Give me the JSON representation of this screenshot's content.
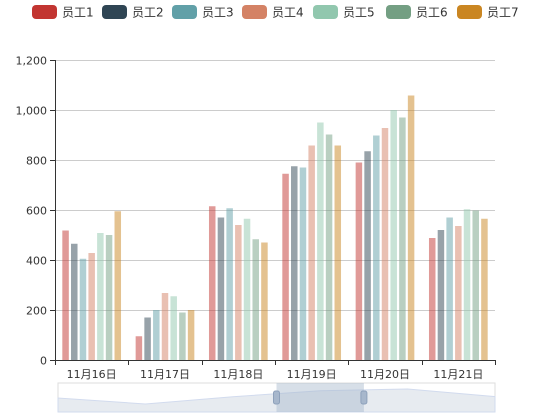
{
  "chart_data": {
    "type": "bar",
    "categories": [
      "11月16日",
      "11月17日",
      "11月18日",
      "11月19日",
      "11月20日",
      "11月21日"
    ],
    "series": [
      {
        "name": "员工1",
        "color": "#c23531",
        "values": [
          518,
          95,
          615,
          745,
          790,
          488
        ]
      },
      {
        "name": "员工2",
        "color": "#2f4554",
        "values": [
          465,
          170,
          570,
          775,
          835,
          520
        ]
      },
      {
        "name": "员工3",
        "color": "#61a0a8",
        "values": [
          405,
          200,
          607,
          770,
          898,
          570
        ]
      },
      {
        "name": "员工4",
        "color": "#d48265",
        "values": [
          428,
          268,
          540,
          858,
          928,
          536
        ]
      },
      {
        "name": "员工5",
        "color": "#91c7ae",
        "values": [
          508,
          255,
          565,
          950,
          1000,
          603
        ]
      },
      {
        "name": "员工6",
        "color": "#749f83",
        "values": [
          500,
          190,
          483,
          902,
          970,
          598
        ]
      },
      {
        "name": "员工7",
        "color": "#ca8622",
        "values": [
          595,
          200,
          470,
          858,
          1058,
          565
        ]
      }
    ],
    "yticks": [
      "0",
      "200",
      "400",
      "600",
      "800",
      "1,000",
      "1,200"
    ],
    "ylim": [
      0,
      1200
    ],
    "grid": true,
    "legend_position": "top",
    "data_zoom": {
      "start_percent": 50,
      "end_percent": 70
    }
  }
}
